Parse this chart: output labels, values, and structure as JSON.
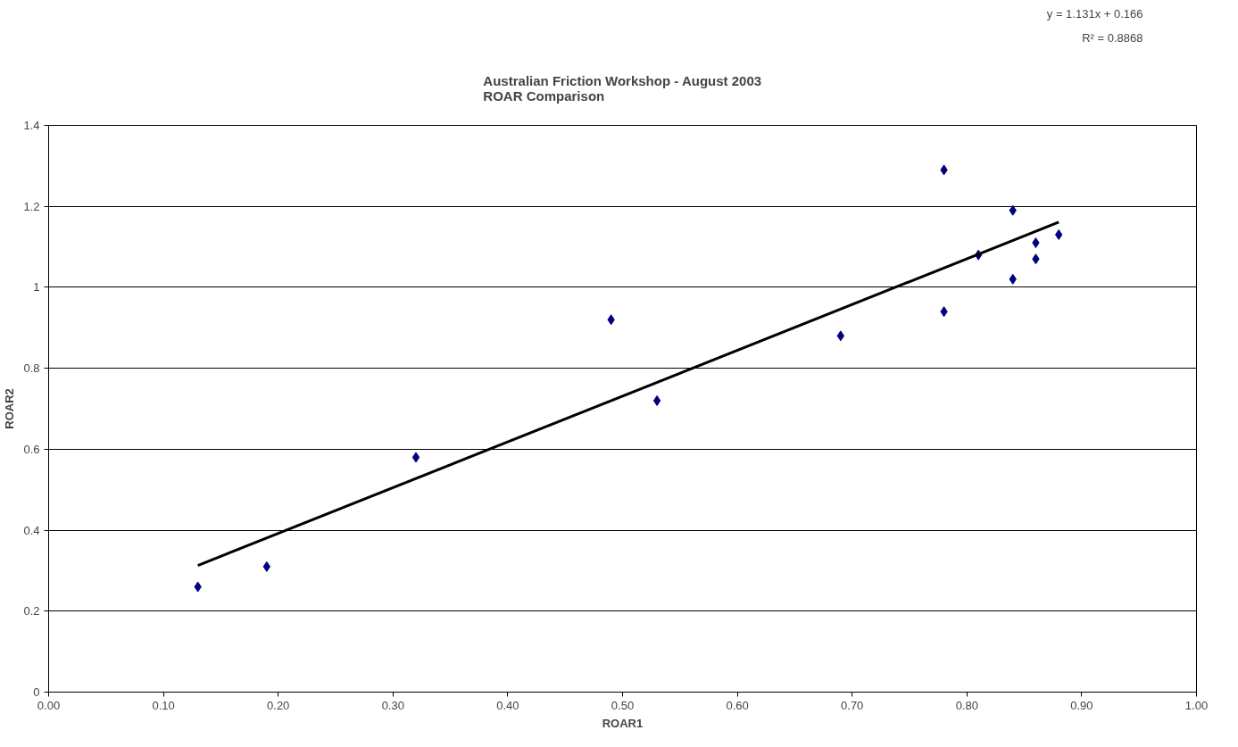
{
  "chart_data": {
    "type": "scatter",
    "title": "Australian Friction Workshop - August 2003\nROAR Comparison",
    "xlabel": "ROAR1",
    "ylabel": "ROAR2",
    "annotations": [
      "y = 1.131x + 0.166",
      "R² = 0.8868"
    ],
    "series": [
      {
        "color": "#000080",
        "marker": "diamond",
        "x": [
          0.13,
          0.19,
          0.32,
          0.49,
          0.53,
          0.69,
          0.78,
          0.78,
          0.84,
          0.81,
          0.84,
          0.86,
          0.86,
          0.88
        ],
        "values": [
          0.26,
          0.31,
          0.58,
          0.92,
          0.72,
          0.88,
          0.94,
          1.29,
          1.19,
          1.08,
          1.02,
          1.11,
          1.07,
          1.13
        ]
      },
      {
        "type": "line",
        "color": "#000000",
        "line_style": "solid",
        "x": [
          0.13,
          0.88
        ],
        "values": [
          0.313,
          1.161
        ]
      }
    ],
    "xlim": [
      0,
      1
    ],
    "ylim": [
      0,
      1.4
    ],
    "xticks": [
      {
        "value": 0,
        "label": "0.00"
      },
      {
        "value": 0.1,
        "label": "0.10"
      },
      {
        "value": 0.2,
        "label": "0.20"
      },
      {
        "value": 0.3,
        "label": "0.30"
      },
      {
        "value": 0.4,
        "label": "0.40"
      },
      {
        "value": 0.5,
        "label": "0.50"
      },
      {
        "value": 0.6,
        "label": "0.60"
      },
      {
        "value": 0.7,
        "label": "0.70"
      },
      {
        "value": 0.8,
        "label": "0.80"
      },
      {
        "value": 0.9,
        "label": "0.90"
      },
      {
        "value": 1,
        "label": "1.00"
      }
    ],
    "yticks": [
      0,
      0.2,
      0.4,
      0.6,
      0.8,
      1,
      1.2,
      1.4
    ],
    "grid": "y"
  }
}
